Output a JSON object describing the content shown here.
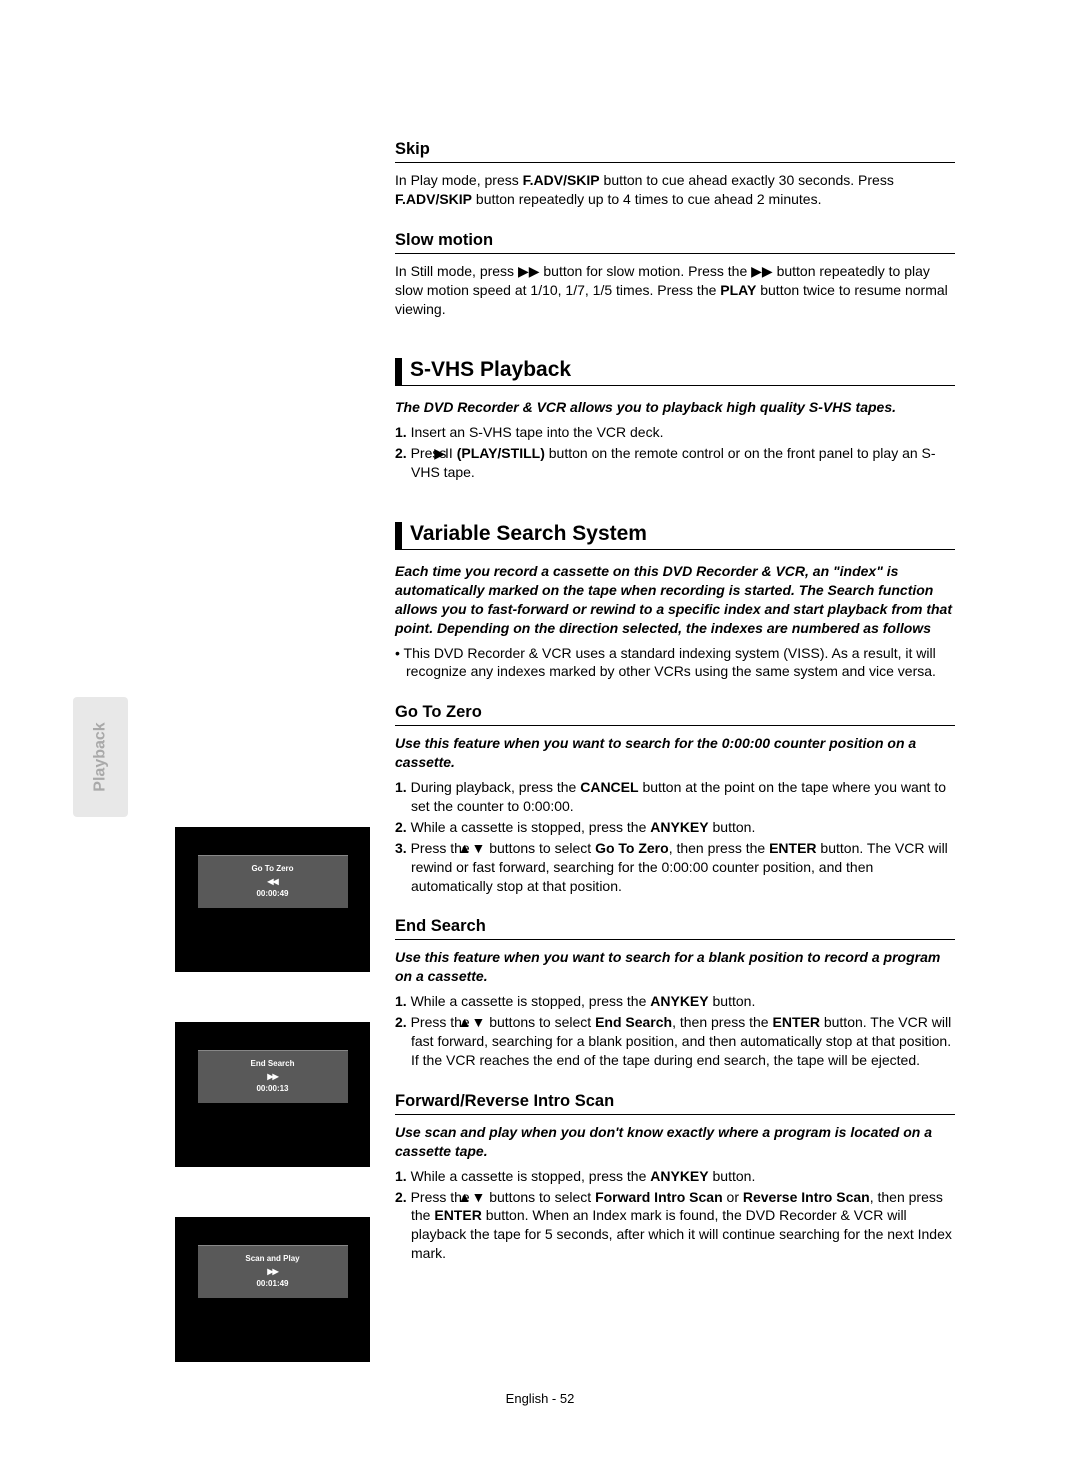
{
  "sidebar": {
    "label": "Playback"
  },
  "screens": {
    "goToZero": {
      "title": "Go To Zero",
      "arrows": "◀◀",
      "time": "00:00:49"
    },
    "endSearch": {
      "title": "End Search",
      "arrows": "▶▶",
      "time": "00:00:13"
    },
    "scanAndPlay": {
      "title": "Scan and Play",
      "arrows": "▶▶",
      "time": "00:01:49"
    }
  },
  "skip": {
    "heading": "Skip",
    "text_a": "In Play mode, press ",
    "btn1": "F.ADV/SKIP",
    "text_b": " button to cue ahead exactly 30 seconds. Press ",
    "btn2": "F.ADV/SKIP",
    "text_c": " button repeatedly up to 4 times to cue ahead 2 minutes."
  },
  "slow": {
    "heading": "Slow motion",
    "text_a": "In Still mode, press ",
    "glyph1": "▶▶",
    "text_b": " button for slow motion. Press the ",
    "glyph2": "▶▶",
    "text_c": " button repeatedly to play slow motion speed  at 1/10, 1/7, 1/5 times. Press the ",
    "btn": "PLAY",
    "text_d": " button twice to resume normal viewing."
  },
  "svhs": {
    "heading": "S-VHS Playback",
    "intro": "The DVD Recorder & VCR allows you to playback high quality S-VHS tapes.",
    "s1_n": "1. ",
    "s1": "Insert an S-VHS tape into the VCR deck.",
    "s2_n": "2. ",
    "s2_a": "Press ",
    "s2_glyph": "▶II",
    "s2_btn": " (PLAY/STILL)",
    "s2_b": " button on the remote control or on the front panel to play an S-VHS tape."
  },
  "vss": {
    "heading": "Variable Search System",
    "intro": "Each time you record a cassette on this DVD Recorder & VCR, an \"index\" is automatically marked on the tape when recording is started. The Search function allows you to fast-forward or rewind to a specific index and start playback from that point. Depending on the direction selected, the indexes are numbered as follows",
    "bullet_dot": "• ",
    "bullet": "This DVD Recorder & VCR uses a standard indexing system (VISS). As a result, it will recognize any indexes marked by other VCRs using the same system and vice versa."
  },
  "gtz": {
    "heading": "Go To Zero",
    "intro": "Use this feature when you want to search for the 0:00:00 counter position on a cassette.",
    "s1_n": "1. ",
    "s1_a": "During playback, press the ",
    "s1_btn": "CANCEL",
    "s1_b": " button at the point on the tape where you want to set the counter to 0:00:00.",
    "s2_n": "2. ",
    "s2_a": "While a cassette is stopped, press the ",
    "s2_btn": "ANYKEY",
    "s2_b": " button.",
    "s3_n": "3. ",
    "s3_a": "Press the ",
    "s3_glyph": "▲▼",
    "s3_b": " buttons to select ",
    "s3_btn1": "Go To Zero",
    "s3_c": ", then press the ",
    "s3_btn2": "ENTER",
    "s3_d": " button. The VCR will rewind or fast forward, searching for the 0:00:00 counter position, and then automatically stop at that position."
  },
  "es": {
    "heading": "End Search",
    "intro": "Use this feature when you want to search for a blank position to record a program on a cassette.",
    "s1_n": "1. ",
    "s1_a": "While a cassette is stopped, press the ",
    "s1_btn": "ANYKEY",
    "s1_b": " button.",
    "s2_n": "2. ",
    "s2_a": "Press the ",
    "s2_glyph": "▲▼",
    "s2_b": " buttons to select ",
    "s2_btn1": "End Search",
    "s2_c": ", then press the ",
    "s2_btn2": "ENTER",
    "s2_d": " button. The VCR will fast forward, searching for a blank position, and then automatically stop at that position. If the VCR reaches the end of the tape during end search, the tape will be ejected."
  },
  "scan": {
    "heading": "Forward/Reverse Intro Scan",
    "intro": "Use scan and play when you don't know exactly where a program is located on a cassette tape.",
    "s1_n": "1. ",
    "s1_a": "While a cassette is stopped, press the ",
    "s1_btn": "ANYKEY",
    "s1_b": " button.",
    "s2_n": "2. ",
    "s2_a": "Press the ",
    "s2_glyph": "▲▼",
    "s2_b": " buttons to select ",
    "s2_btn1": "Forward Intro Scan",
    "s2_c": " or ",
    "s2_btn2": "Reverse Intro Scan",
    "s2_d": ", then press the ",
    "s2_btn3": "ENTER",
    "s2_e": " button. When an Index mark is found, the DVD Recorder & VCR will playback the tape for 5 seconds, after which it will continue searching for the next Index mark."
  },
  "footer": {
    "text": "English - 52"
  }
}
